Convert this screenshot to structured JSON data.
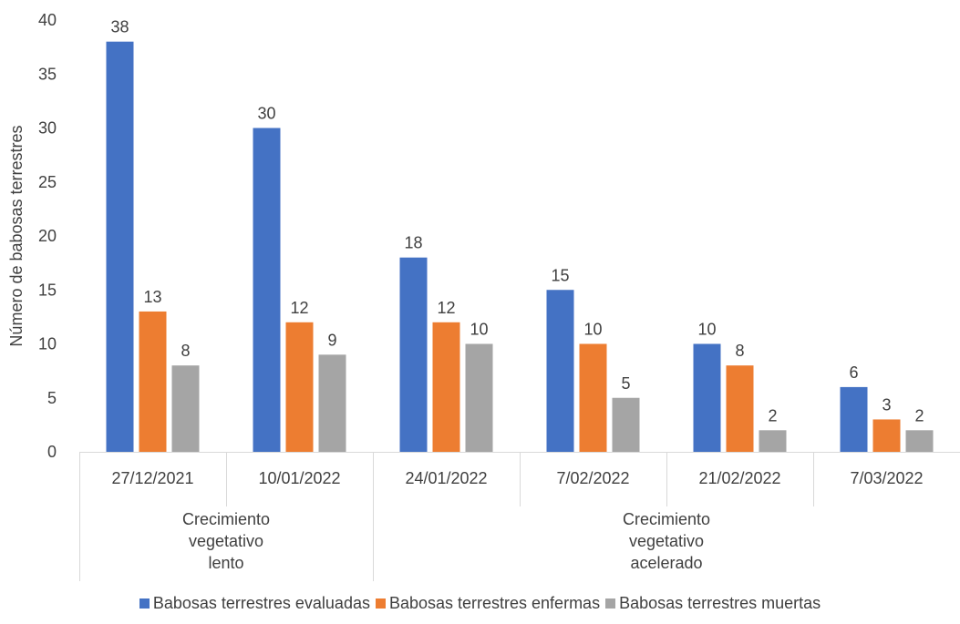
{
  "chart_data": {
    "type": "bar",
    "ylabel": "Número de babosas terrestres",
    "ylim": [
      0,
      40
    ],
    "yticks": [
      0,
      5,
      10,
      15,
      20,
      25,
      30,
      35,
      40
    ],
    "grid": false,
    "legend_position": "bottom",
    "categories": [
      "27/12/2021",
      "10/01/2022",
      "24/01/2022",
      "7/02/2022",
      "21/02/2022",
      "7/03/2022"
    ],
    "groups": [
      {
        "label_lines": [
          "Crecimiento",
          "vegetativo",
          "lento"
        ],
        "span": [
          0,
          1
        ]
      },
      {
        "label_lines": [
          "Crecimiento",
          "vegetativo",
          "acelerado"
        ],
        "span": [
          2,
          5
        ]
      }
    ],
    "series": [
      {
        "name": "Babosas terrestres evaluadas",
        "color": "#4472C4",
        "values": [
          38,
          30,
          18,
          15,
          10,
          6
        ]
      },
      {
        "name": "Babosas terrestres enfermas",
        "color": "#ED7D31",
        "values": [
          13,
          12,
          12,
          10,
          8,
          3
        ]
      },
      {
        "name": "Babosas terrestres muertas",
        "color": "#A5A5A5",
        "values": [
          8,
          9,
          10,
          5,
          2,
          2
        ]
      }
    ]
  }
}
